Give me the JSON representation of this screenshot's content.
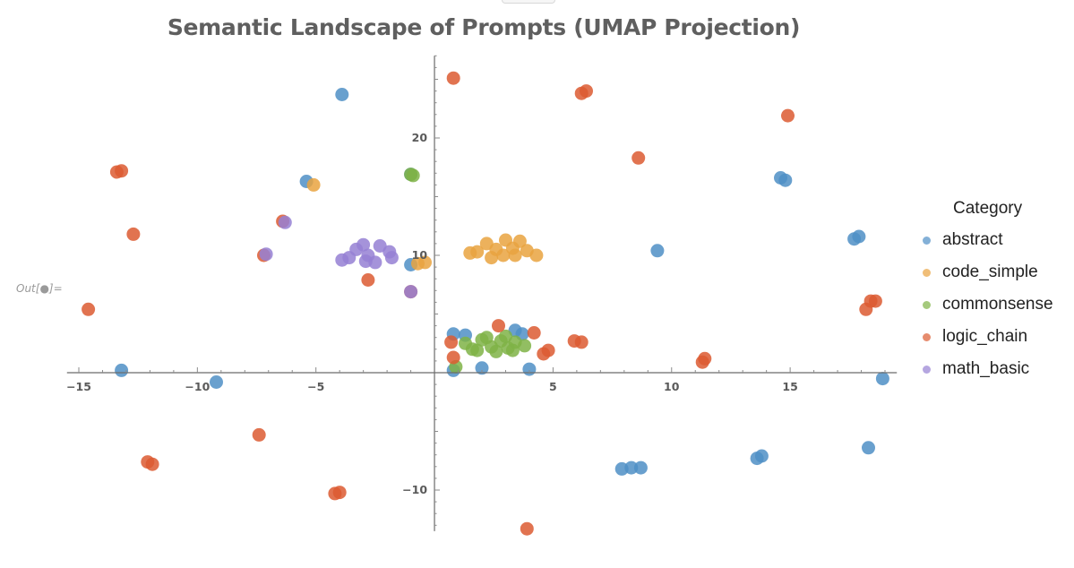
{
  "notebook": {
    "out_label": "Out[●]="
  },
  "chart_data": {
    "type": "scatter",
    "title": "Semantic Landscape of Prompts (UMAP Projection)",
    "xlabel": "",
    "ylabel": "",
    "xlim": [
      -15.5,
      19.5
    ],
    "ylim": [
      -13.5,
      27
    ],
    "xticks": [
      -15,
      -10,
      -5,
      5,
      10,
      15
    ],
    "xtick_labels": [
      "−15",
      "−10",
      "−5",
      "5",
      "10",
      "15"
    ],
    "yticks": [
      -10,
      10,
      20
    ],
    "ytick_labels": [
      "−10",
      "10",
      "20"
    ],
    "grid": false,
    "legend": {
      "title": "Category",
      "position": "right",
      "items": [
        {
          "name": "abstract",
          "color": "#4f8fc6"
        },
        {
          "name": "code_simple",
          "color": "#e9a33f"
        },
        {
          "name": "commonsense",
          "color": "#7fb346"
        },
        {
          "name": "logic_chain",
          "color": "#dc5b31"
        },
        {
          "name": "math_basic",
          "color": "#9580d3"
        }
      ]
    },
    "series": [
      {
        "name": "abstract",
        "color": "#4f8fc6",
        "points": [
          [
            -3.9,
            23.7
          ],
          [
            -5.4,
            16.3
          ],
          [
            -1.0,
            16.9
          ],
          [
            -1.0,
            9.2
          ],
          [
            -13.2,
            0.2
          ],
          [
            -9.2,
            -0.8
          ],
          [
            9.4,
            10.4
          ],
          [
            14.6,
            16.6
          ],
          [
            14.8,
            16.4
          ],
          [
            17.7,
            11.4
          ],
          [
            17.9,
            11.6
          ],
          [
            18.9,
            -0.5
          ],
          [
            18.3,
            -6.4
          ],
          [
            13.6,
            -7.3
          ],
          [
            13.8,
            -7.1
          ],
          [
            7.9,
            -8.2
          ],
          [
            8.3,
            -8.1
          ],
          [
            8.7,
            -8.1
          ],
          [
            0.8,
            3.3
          ],
          [
            1.3,
            3.2
          ],
          [
            3.4,
            3.6
          ],
          [
            3.7,
            3.3
          ],
          [
            0.8,
            0.2
          ],
          [
            2.0,
            0.4
          ],
          [
            4.0,
            0.3
          ]
        ]
      },
      {
        "name": "code_simple",
        "color": "#e9a33f",
        "points": [
          [
            -5.1,
            16.0
          ],
          [
            -0.7,
            9.3
          ],
          [
            -0.4,
            9.4
          ],
          [
            1.8,
            10.3
          ],
          [
            2.2,
            11.0
          ],
          [
            2.6,
            10.5
          ],
          [
            3.0,
            11.3
          ],
          [
            3.3,
            10.6
          ],
          [
            3.6,
            11.2
          ],
          [
            2.4,
            9.8
          ],
          [
            2.9,
            10.0
          ],
          [
            3.4,
            10.0
          ],
          [
            3.9,
            10.4
          ],
          [
            4.3,
            10.0
          ],
          [
            1.5,
            10.2
          ]
        ]
      },
      {
        "name": "commonsense",
        "color": "#7fb346",
        "points": [
          [
            -1.0,
            16.9
          ],
          [
            -0.9,
            16.8
          ],
          [
            1.3,
            2.5
          ],
          [
            1.6,
            2.0
          ],
          [
            2.0,
            2.8
          ],
          [
            2.4,
            2.2
          ],
          [
            2.8,
            2.7
          ],
          [
            3.1,
            2.1
          ],
          [
            3.4,
            2.6
          ],
          [
            3.8,
            2.3
          ],
          [
            2.2,
            3.0
          ],
          [
            3.0,
            3.1
          ],
          [
            1.8,
            1.9
          ],
          [
            2.6,
            1.8
          ],
          [
            3.3,
            1.9
          ],
          [
            0.9,
            0.5
          ]
        ]
      },
      {
        "name": "logic_chain",
        "color": "#dc5b31",
        "points": [
          [
            0.8,
            25.1
          ],
          [
            6.2,
            23.8
          ],
          [
            6.4,
            24.0
          ],
          [
            14.9,
            21.9
          ],
          [
            8.6,
            18.3
          ],
          [
            -13.4,
            17.1
          ],
          [
            -13.2,
            17.2
          ],
          [
            -12.7,
            11.8
          ],
          [
            -6.4,
            12.9
          ],
          [
            -7.2,
            10.0
          ],
          [
            -2.8,
            7.9
          ],
          [
            -1.0,
            6.9
          ],
          [
            -14.6,
            5.4
          ],
          [
            18.2,
            5.4
          ],
          [
            18.4,
            6.1
          ],
          [
            18.6,
            6.1
          ],
          [
            5.9,
            2.7
          ],
          [
            6.2,
            2.6
          ],
          [
            4.6,
            1.6
          ],
          [
            4.8,
            1.9
          ],
          [
            11.3,
            0.9
          ],
          [
            11.4,
            1.2
          ],
          [
            0.7,
            2.6
          ],
          [
            0.8,
            1.3
          ],
          [
            2.7,
            4.0
          ],
          [
            4.2,
            3.4
          ],
          [
            -7.4,
            -5.3
          ],
          [
            -12.1,
            -7.6
          ],
          [
            -11.9,
            -7.8
          ],
          [
            -4.2,
            -10.3
          ],
          [
            -4.0,
            -10.2
          ],
          [
            3.9,
            -13.3
          ]
        ]
      },
      {
        "name": "math_basic",
        "color": "#9580d3",
        "points": [
          [
            -3.3,
            10.5
          ],
          [
            -2.8,
            10.0
          ],
          [
            -2.3,
            10.8
          ],
          [
            -3.6,
            9.8
          ],
          [
            -2.9,
            9.5
          ],
          [
            -1.9,
            10.3
          ],
          [
            -3.9,
            9.6
          ],
          [
            -2.5,
            9.4
          ],
          [
            -1.8,
            9.8
          ],
          [
            -3.0,
            10.9
          ],
          [
            -6.3,
            12.8
          ],
          [
            -7.1,
            10.1
          ],
          [
            -1.0,
            6.9
          ]
        ]
      }
    ]
  }
}
